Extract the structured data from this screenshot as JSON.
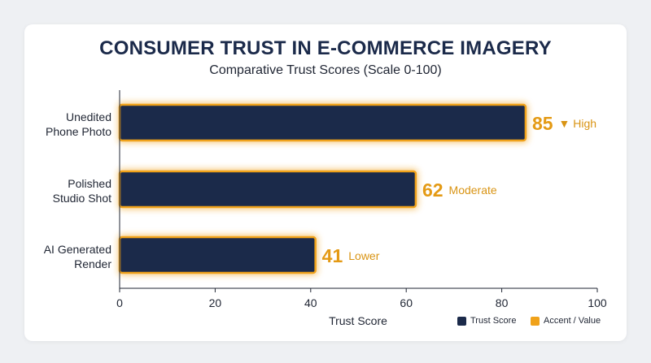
{
  "chart_data": {
    "type": "bar",
    "orientation": "horizontal",
    "title": "CONSUMER TRUST IN E-COMMERCE IMAGERY",
    "subtitle": "Comparative Trust Scores (Scale 0-100)",
    "xlabel": "Trust Score",
    "ylabel": "",
    "xlim": [
      0,
      100
    ],
    "xticks": [
      0,
      20,
      40,
      60,
      80,
      100
    ],
    "categories": [
      [
        "Unedited",
        "Phone Photo"
      ],
      [
        "Polished",
        "Studio Shot"
      ],
      [
        "AI Generated",
        "Render"
      ]
    ],
    "values": [
      85,
      62,
      41
    ],
    "data_labels": [
      "85",
      "62",
      "41"
    ],
    "annotations": [
      "▼ High",
      "Moderate",
      "Lower"
    ],
    "grid": false,
    "legend": {
      "placement": "bottom-right",
      "items": [
        {
          "label": "Trust Score",
          "color": "#1b2a4a"
        },
        {
          "label": "Accent / Value",
          "color": "#f0a21a"
        }
      ]
    },
    "colors": {
      "bar": "#1b2a4a",
      "accent": "#f0a21a",
      "value_text": "#e49a14",
      "annotation_text": "#d99414"
    }
  }
}
